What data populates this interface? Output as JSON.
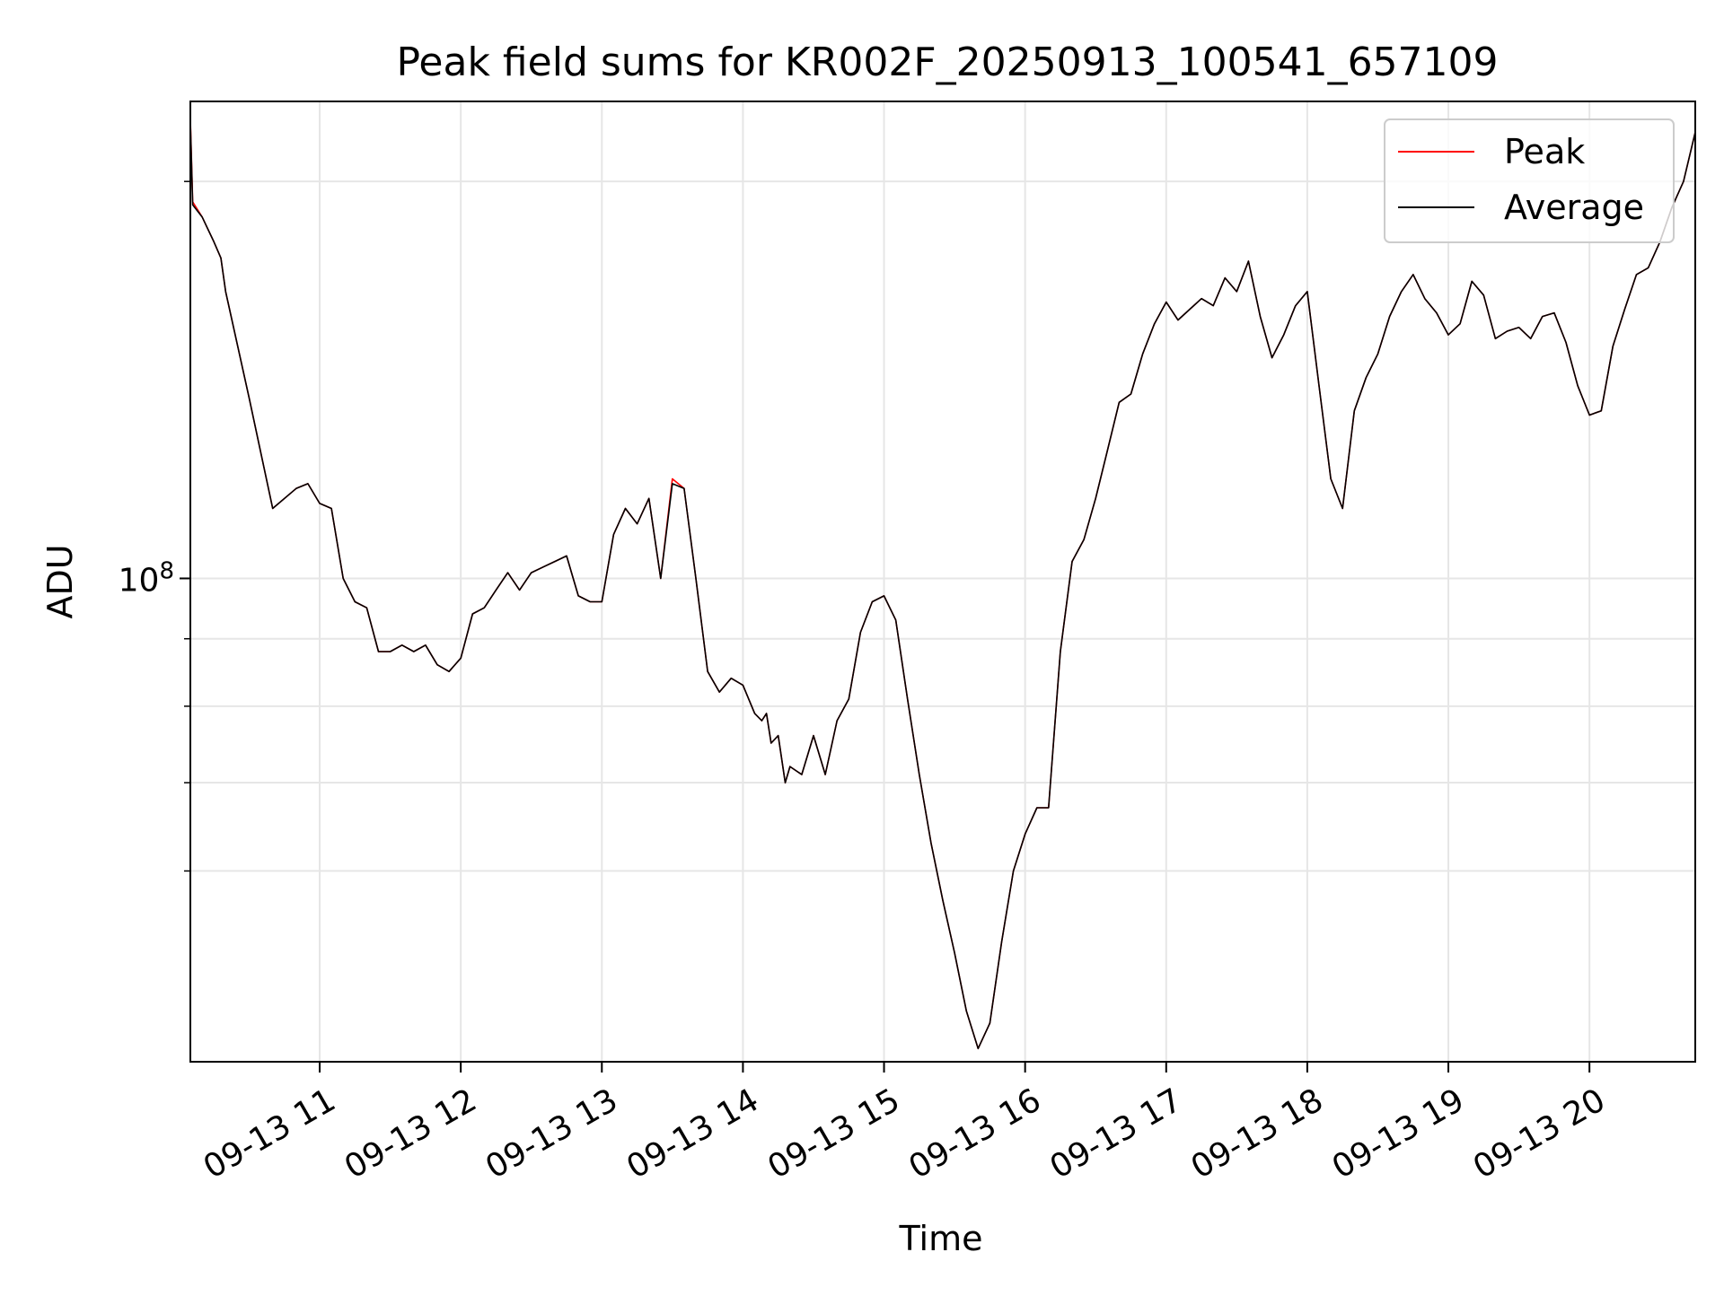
{
  "chart_data": {
    "type": "line",
    "title": "Peak field sums for KR002F_20250913_100541_657109",
    "xlabel": "Time",
    "ylabel": "ADU",
    "y_scale": "log",
    "x_range": [
      "2025-09-13T10:05",
      "2025-09-13T20:45"
    ],
    "y_range": [
      43000000,
      230000000
    ],
    "x_ticks": [
      "09-13 11",
      "09-13 12",
      "09-13 13",
      "09-13 14",
      "09-13 15",
      "09-13 16",
      "09-13 17",
      "09-13 18",
      "09-13 19",
      "09-13 20"
    ],
    "x_tick_times": [
      "2025-09-13T11:00",
      "2025-09-13T12:00",
      "2025-09-13T13:00",
      "2025-09-13T14:00",
      "2025-09-13T15:00",
      "2025-09-13T16:00",
      "2025-09-13T17:00",
      "2025-09-13T18:00",
      "2025-09-13T19:00",
      "2025-09-13T20:00"
    ],
    "y_major_ticks": [
      {
        "value": 100000000,
        "base": "10",
        "exp": "8"
      }
    ],
    "y_minor_ticks": [
      60000000,
      70000000,
      80000000,
      90000000,
      200000000
    ],
    "grid": true,
    "legend_position": "top-right",
    "x": [
      "10:05",
      "10:06",
      "10:10",
      "10:15",
      "10:18",
      "10:20",
      "10:30",
      "10:40",
      "10:50",
      "10:55",
      "11:00",
      "11:05",
      "11:10",
      "11:15",
      "11:20",
      "11:25",
      "11:30",
      "11:35",
      "11:40",
      "11:45",
      "11:50",
      "11:55",
      "12:00",
      "12:05",
      "12:10",
      "12:15",
      "12:20",
      "12:25",
      "12:30",
      "12:35",
      "12:40",
      "12:45",
      "12:50",
      "12:55",
      "13:00",
      "13:05",
      "13:10",
      "13:15",
      "13:20",
      "13:25",
      "13:30",
      "13:35",
      "13:40",
      "13:45",
      "13:50",
      "13:55",
      "14:00",
      "14:05",
      "14:08",
      "14:10",
      "14:12",
      "14:15",
      "14:18",
      "14:20",
      "14:25",
      "14:30",
      "14:35",
      "14:40",
      "14:45",
      "14:50",
      "14:55",
      "15:00",
      "15:05",
      "15:10",
      "15:15",
      "15:20",
      "15:25",
      "15:30",
      "15:35",
      "15:40",
      "15:45",
      "15:50",
      "15:55",
      "16:00",
      "16:05",
      "16:10",
      "16:15",
      "16:20",
      "16:25",
      "16:30",
      "16:35",
      "16:40",
      "16:45",
      "16:50",
      "16:55",
      "17:00",
      "17:05",
      "17:10",
      "17:15",
      "17:20",
      "17:25",
      "17:30",
      "17:35",
      "17:40",
      "17:45",
      "17:50",
      "17:55",
      "18:00",
      "18:05",
      "18:10",
      "18:15",
      "18:20",
      "18:25",
      "18:30",
      "18:35",
      "18:40",
      "18:45",
      "18:50",
      "18:55",
      "19:00",
      "19:05",
      "19:10",
      "19:15",
      "19:20",
      "19:25",
      "19:30",
      "19:35",
      "19:40",
      "19:45",
      "19:50",
      "19:55",
      "20:00",
      "20:05",
      "20:10",
      "20:15",
      "20:20",
      "20:25",
      "20:30",
      "20:35",
      "20:40",
      "20:45"
    ],
    "series": [
      {
        "name": "Peak",
        "color": "#ff0000",
        "values": [
          223000000,
          193000000,
          188000000,
          180000000,
          175000000,
          165000000,
          137000000,
          113000000,
          117000000,
          118000000,
          114000000,
          113000000,
          100000000,
          96000000,
          95000000,
          88000000,
          88000000,
          89000000,
          88000000,
          89000000,
          86000000,
          85000000,
          87000000,
          94000000,
          95000000,
          98000000,
          101000000,
          98000000,
          101000000,
          102000000,
          103000000,
          104000000,
          97000000,
          96000000,
          96000000,
          108000000,
          113000000,
          110000000,
          115000000,
          100000000,
          119000000,
          117000000,
          100000000,
          85000000,
          82000000,
          84000000,
          83000000,
          79000000,
          78000000,
          79000000,
          75000000,
          76000000,
          70000000,
          72000000,
          71000000,
          76000000,
          71000000,
          78000000,
          81000000,
          91000000,
          96000000,
          97000000,
          93000000,
          81000000,
          71000000,
          63000000,
          57000000,
          52000000,
          47000000,
          44000000,
          46000000,
          53000000,
          60000000,
          64000000,
          67000000,
          67000000,
          88000000,
          103000000,
          107000000,
          115000000,
          125000000,
          136000000,
          138000000,
          148000000,
          156000000,
          162000000,
          157000000,
          160000000,
          163000000,
          161000000,
          169000000,
          165000000,
          174000000,
          158000000,
          147000000,
          153000000,
          161000000,
          165000000,
          140000000,
          119000000,
          113000000,
          134000000,
          142000000,
          148000000,
          158000000,
          165000000,
          170000000,
          163000000,
          159000000,
          153000000,
          156000000,
          168000000,
          164000000,
          152000000,
          154000000,
          155000000,
          152000000,
          158000000,
          159000000,
          151000000,
          140000000,
          133000000,
          134000000,
          150000000,
          160000000,
          170000000,
          172000000,
          180000000,
          191000000,
          200000000,
          218000000
        ]
      },
      {
        "name": "Average",
        "color": "#000000",
        "values": [
          222000000,
          192000000,
          188000000,
          180000000,
          175000000,
          165000000,
          137000000,
          113000000,
          117000000,
          118000000,
          114000000,
          113000000,
          100000000,
          96000000,
          95000000,
          88000000,
          88000000,
          89000000,
          88000000,
          89000000,
          86000000,
          85000000,
          87000000,
          94000000,
          95000000,
          98000000,
          101000000,
          98000000,
          101000000,
          102000000,
          103000000,
          104000000,
          97000000,
          96000000,
          96000000,
          108000000,
          113000000,
          110000000,
          115000000,
          100000000,
          118000000,
          117000000,
          100000000,
          85000000,
          82000000,
          84000000,
          83000000,
          79000000,
          78000000,
          79000000,
          75000000,
          76000000,
          70000000,
          72000000,
          71000000,
          76000000,
          71000000,
          78000000,
          81000000,
          91000000,
          96000000,
          97000000,
          93000000,
          81000000,
          71000000,
          63000000,
          57000000,
          52000000,
          47000000,
          44000000,
          46000000,
          53000000,
          60000000,
          64000000,
          67000000,
          67000000,
          88000000,
          103000000,
          107000000,
          115000000,
          125000000,
          136000000,
          138000000,
          148000000,
          156000000,
          162000000,
          157000000,
          160000000,
          163000000,
          161000000,
          169000000,
          165000000,
          174000000,
          158000000,
          147000000,
          153000000,
          161000000,
          165000000,
          140000000,
          119000000,
          113000000,
          134000000,
          142000000,
          148000000,
          158000000,
          165000000,
          170000000,
          163000000,
          159000000,
          153000000,
          156000000,
          168000000,
          164000000,
          152000000,
          154000000,
          155000000,
          152000000,
          158000000,
          159000000,
          151000000,
          140000000,
          133000000,
          134000000,
          150000000,
          160000000,
          170000000,
          172000000,
          180000000,
          191000000,
          200000000,
          218000000
        ]
      }
    ]
  }
}
